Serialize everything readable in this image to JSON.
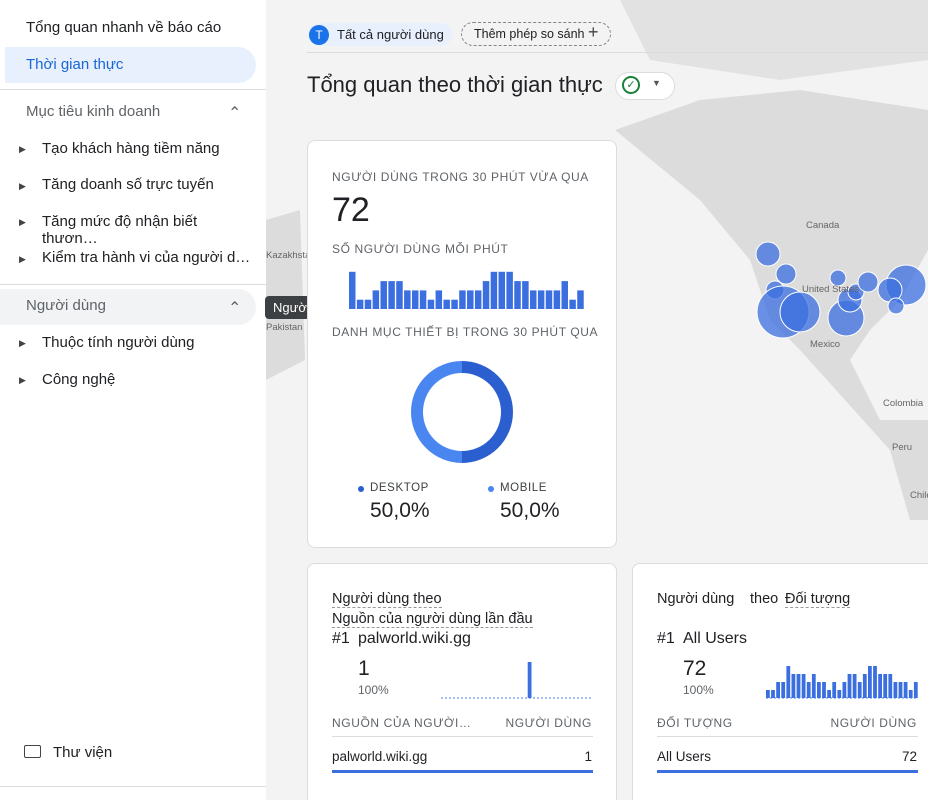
{
  "sidebar": {
    "items": [
      "Tổng quan nhanh về báo cáo",
      "Thời gian thực"
    ],
    "sections": [
      {
        "title": "Mục tiêu kinh doanh",
        "items": [
          "Tạo khách hàng tiềm năng",
          "Tăng doanh số trực tuyến",
          "Tăng mức độ nhận biết thươn…",
          "Kiểm tra hành vi của người d…"
        ]
      },
      {
        "title": "Người dùng",
        "items": [
          "Thuộc tính người dùng",
          "Công nghệ"
        ]
      }
    ],
    "tooltip": "Người dùng",
    "library": "Thư viện"
  },
  "header": {
    "audience_initial": "T",
    "audience": "Tất cả người dùng",
    "compare": "Thêm phép so sánh",
    "title": "Tổng quan theo thời gian thực"
  },
  "map": {
    "labels": [
      "Canada",
      "United States",
      "Mexico",
      "Colombia",
      "Peru",
      "Chile",
      "Kazakhstan",
      "Pakistan"
    ]
  },
  "realtime_card": {
    "users_label": "NGƯỜI DÙNG TRONG 30 PHÚT VỪA QUA",
    "users": 72,
    "per_minute_label": "SỐ NGƯỜI DÙNG MỖI PHÚT",
    "per_minute": [
      4,
      1,
      1,
      2,
      3,
      3,
      3,
      2,
      2,
      2,
      1,
      2,
      1,
      1,
      2,
      2,
      2,
      3,
      4,
      4,
      4,
      3,
      3,
      2,
      2,
      2,
      2,
      3,
      1,
      2
    ],
    "device_label": "DANH MỤC THIẾT BỊ TRONG 30 PHÚT QUA",
    "devices": [
      {
        "name": "DESKTOP",
        "value": 50,
        "label": "50,0%",
        "color": "#2b5fd0"
      },
      {
        "name": "MOBILE",
        "value": 50,
        "label": "50,0%",
        "color": "#4a86f0"
      }
    ]
  },
  "source_card": {
    "title": "Người dùng theo",
    "dimension": "Nguồn của người dùng lần đầu",
    "rank": "#1",
    "top_name": "palworld.wiki.gg",
    "top_value": 1,
    "top_share": "100%",
    "trend": [
      0,
      0,
      0,
      0,
      0,
      0,
      0,
      0,
      0,
      0,
      0,
      0,
      0,
      0,
      0,
      0,
      0,
      1,
      0,
      0,
      0,
      0,
      0,
      0,
      0,
      0,
      0,
      0,
      0,
      0
    ],
    "columns": [
      "NGUỒN CỦA NGƯỜI…",
      "NGƯỜI DÙNG"
    ],
    "rows": [
      [
        "palworld.wiki.gg",
        1
      ]
    ]
  },
  "audience_card": {
    "metric": "Người dùng",
    "by": "theo",
    "dimension": "Đối tượng",
    "rank": "#1",
    "top_name": "All Users",
    "top_value": 72,
    "top_share": "100%",
    "trend": [
      1,
      1,
      2,
      2,
      4,
      3,
      3,
      3,
      2,
      3,
      2,
      2,
      1,
      2,
      1,
      2,
      3,
      3,
      2,
      3,
      4,
      4,
      3,
      3,
      3,
      2,
      2,
      2,
      1,
      2
    ],
    "columns": [
      "ĐỐI TƯỢNG",
      "NGƯỜI DÙNG"
    ],
    "rows": [
      [
        "All Users",
        72
      ]
    ]
  }
}
